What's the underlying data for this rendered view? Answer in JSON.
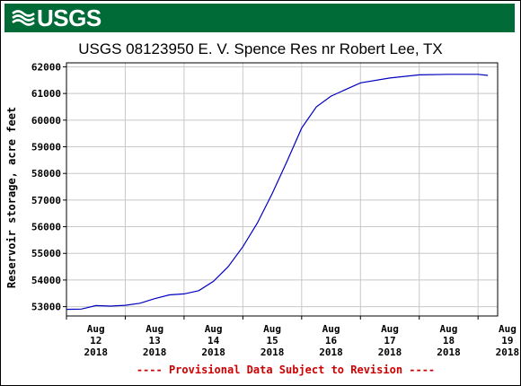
{
  "header": {
    "logo_text": "USGS",
    "banner_color": "#006b36",
    "logo_icon": "usgs-wave-icon"
  },
  "chart_data": {
    "type": "line",
    "title": "USGS 08123950 E. V. Spence Res nr Robert Lee, TX",
    "ylabel": "Reservoir storage, acre feet",
    "xlabel": "",
    "ylim": [
      52650,
      62150
    ],
    "xlim": [
      "2018-08-12 00:00",
      "2018-08-19 08:00"
    ],
    "grid": true,
    "line_color": "#0000c0",
    "y_ticks": [
      53000,
      54000,
      55000,
      56000,
      57000,
      58000,
      59000,
      60000,
      61000,
      62000
    ],
    "y_tick_labels": [
      "53000",
      "54000",
      "55000",
      "56000",
      "57000",
      "58000",
      "59000",
      "60000",
      "61000",
      "62000"
    ],
    "x_ticks": [
      "2018-08-12",
      "2018-08-13",
      "2018-08-14",
      "2018-08-15",
      "2018-08-16",
      "2018-08-17",
      "2018-08-18",
      "2018-08-19"
    ],
    "x_tick_labels": [
      [
        "Aug",
        "12",
        "2018"
      ],
      [
        "Aug",
        "13",
        "2018"
      ],
      [
        "Aug",
        "14",
        "2018"
      ],
      [
        "Aug",
        "15",
        "2018"
      ],
      [
        "Aug",
        "16",
        "2018"
      ],
      [
        "Aug",
        "17",
        "2018"
      ],
      [
        "Aug",
        "18",
        "2018"
      ],
      [
        "Aug",
        "19",
        "2018"
      ]
    ],
    "x": [
      "2018-08-12 00:00",
      "2018-08-12 06:00",
      "2018-08-12 08:00",
      "2018-08-12 12:00",
      "2018-08-12 18:00",
      "2018-08-13 00:00",
      "2018-08-13 06:00",
      "2018-08-13 12:00",
      "2018-08-13 18:00",
      "2018-08-14 00:00",
      "2018-08-14 06:00",
      "2018-08-14 12:00",
      "2018-08-14 18:00",
      "2018-08-15 00:00",
      "2018-08-15 06:00",
      "2018-08-15 12:00",
      "2018-08-15 18:00",
      "2018-08-16 00:00",
      "2018-08-16 06:00",
      "2018-08-16 12:00",
      "2018-08-17 00:00",
      "2018-08-17 12:00",
      "2018-08-18 00:00",
      "2018-08-18 12:00",
      "2018-08-19 00:00",
      "2018-08-19 04:00"
    ],
    "series": [
      {
        "values": [
          52900,
          52910,
          52950,
          53040,
          53020,
          53050,
          53130,
          53300,
          53440,
          53480,
          53600,
          53950,
          54500,
          55250,
          56150,
          57250,
          58450,
          59700,
          60500,
          60900,
          61400,
          61580,
          61700,
          61720,
          61720,
          61680
        ]
      }
    ]
  },
  "footer": {
    "note": "---- Provisional Data Subject to Revision ----",
    "note_color": "#cc0000"
  }
}
